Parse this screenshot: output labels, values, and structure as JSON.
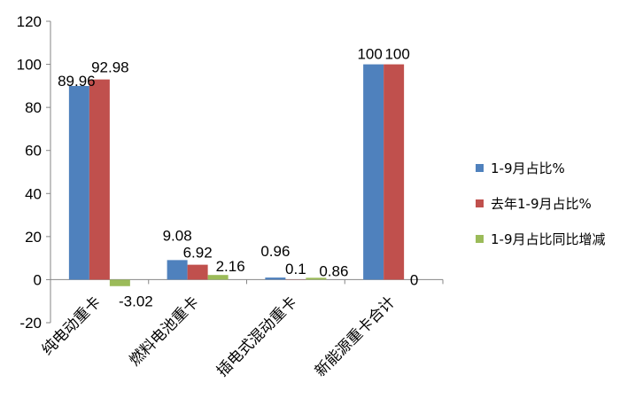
{
  "chart_data": {
    "type": "bar",
    "title": "",
    "xlabel": "",
    "ylabel": "",
    "ylim": [
      -20,
      120
    ],
    "yticks": [
      -20,
      0,
      20,
      40,
      60,
      80,
      100,
      120
    ],
    "categories": [
      "纯电动重卡",
      "燃料电池重卡",
      "插电式混动重卡",
      "新能源重卡合计"
    ],
    "series": [
      {
        "name": "1-9月占比%",
        "color": "#4f81bd",
        "values": [
          89.96,
          9.08,
          0.96,
          100
        ],
        "labels": [
          "89.96",
          "9.08",
          "0.96",
          "100"
        ]
      },
      {
        "name": "去年1-9月占比%",
        "color": "#c0504d",
        "values": [
          92.98,
          6.92,
          0.1,
          100
        ],
        "labels": [
          "92.98",
          "6.92",
          "0.1",
          "100"
        ]
      },
      {
        "name": "1-9月占比同比增减",
        "color": "#9bbb59",
        "values": [
          -3.02,
          2.16,
          0.86,
          0
        ],
        "labels": [
          "-3.02",
          "2.16",
          "0.86",
          "0"
        ]
      }
    ],
    "grid": false,
    "legend": "right"
  }
}
